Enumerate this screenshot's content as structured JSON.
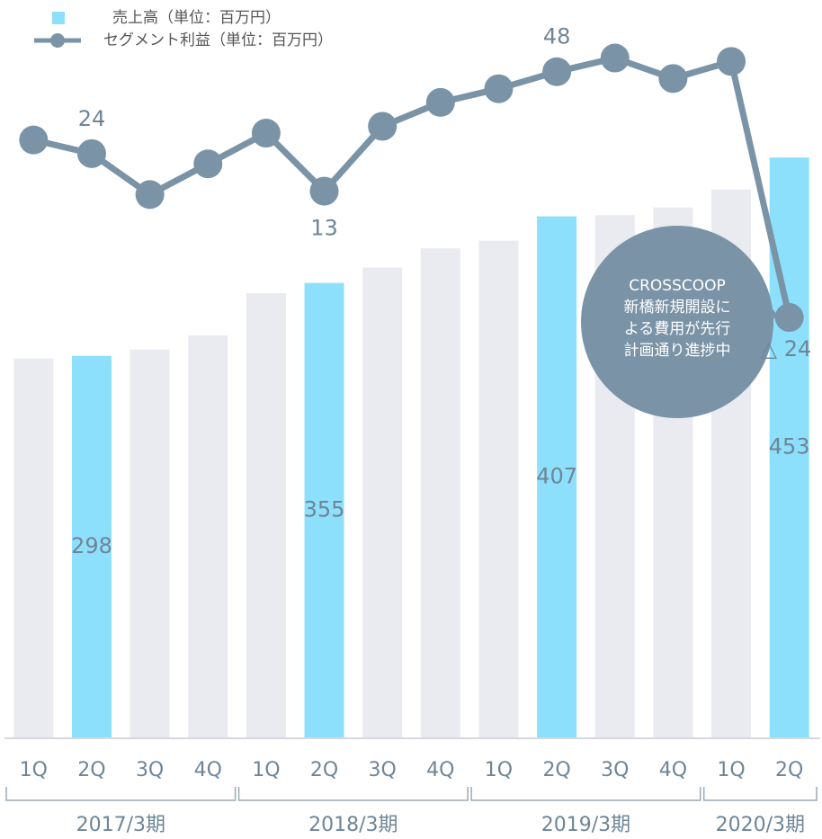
{
  "chart_data": {
    "type": "bar-line",
    "categories": [
      "1Q",
      "2Q",
      "3Q",
      "4Q",
      "1Q",
      "2Q",
      "3Q",
      "4Q",
      "1Q",
      "2Q",
      "3Q",
      "4Q",
      "1Q",
      "2Q"
    ],
    "groups": [
      {
        "label": "2017/3期",
        "count": 4
      },
      {
        "label": "2018/3期",
        "count": 4
      },
      {
        "label": "2019/3期",
        "count": 4
      },
      {
        "label": "2020/3期",
        "count": 2
      }
    ],
    "series": [
      {
        "name": "売上高（単位：百万円）",
        "type": "bar",
        "color": "#8de0fb",
        "colors": [
          "#e9ebf0",
          "#8de0fb",
          "#e9ebf0",
          "#e9ebf0",
          "#e9ebf0",
          "#8de0fb",
          "#e9ebf0",
          "#e9ebf0",
          "#e9ebf0",
          "#8de0fb",
          "#e9ebf0",
          "#e9ebf0",
          "#e9ebf0",
          "#8de0fb"
        ],
        "values": [
          296,
          298,
          303,
          314,
          347,
          355,
          367,
          382,
          388,
          407,
          408,
          414,
          428,
          453
        ],
        "value_labels": [
          null,
          "298",
          null,
          null,
          null,
          "355",
          null,
          null,
          null,
          "407",
          null,
          null,
          null,
          "453"
        ]
      },
      {
        "name": "セグメント利益（単位：百万円）",
        "type": "line",
        "axis": "y2",
        "color": "#7a93a6",
        "values": [
          28,
          24,
          12,
          21,
          30,
          13,
          32,
          39,
          43,
          48,
          52,
          46,
          51,
          -24
        ],
        "value_labels": [
          null,
          "24",
          null,
          null,
          null,
          "13",
          null,
          null,
          null,
          "48",
          null,
          null,
          null,
          "△ 24"
        ]
      }
    ],
    "annotation": [
      "CROSSCOOP",
      "新橋新規開設に",
      "よる費用が先行",
      "計画通り進捗中"
    ],
    "ylim": [
      0,
      576
    ],
    "y2lim": [
      -147,
      69
    ]
  }
}
